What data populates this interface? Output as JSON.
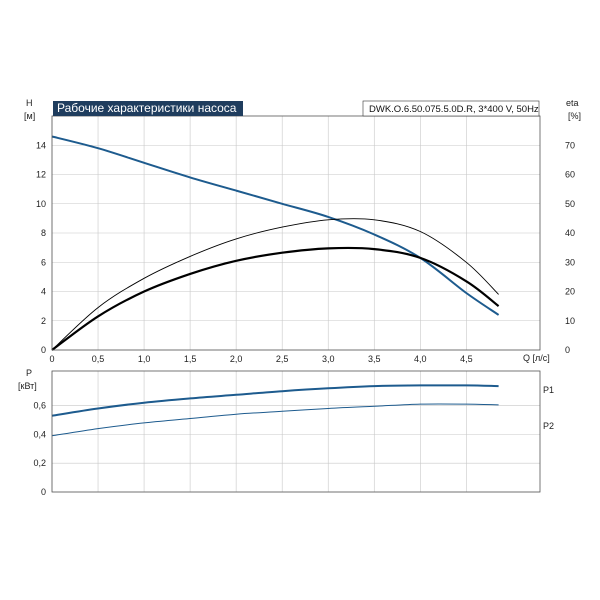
{
  "title": "Рабочие характеристики насоса",
  "model": "DWK.O.6.50.075.5.0D.R, 3*400 V, 50Hz",
  "colors": {
    "head": "#1d5b8e",
    "power": "#1d5b8e",
    "eta": "#000000",
    "title_bg": "#1f3d5e"
  },
  "chart_data": [
    {
      "type": "line",
      "xlabel": "Q [л/с]",
      "ylabel_left": [
        "H",
        "[м]"
      ],
      "ylabel_right": [
        "eta",
        "[%]"
      ],
      "xlim": [
        0,
        5.3
      ],
      "ylim": [
        0,
        16
      ],
      "ylim_right": [
        0,
        80
      ],
      "xticks": [
        0,
        0.5,
        1.0,
        1.5,
        2.0,
        2.5,
        3.0,
        3.5,
        4.0,
        4.5
      ],
      "xtick_labels": [
        "0",
        "0,5",
        "1,0",
        "1,5",
        "2,0",
        "2,5",
        "3,0",
        "3,5",
        "4,0",
        "4,5"
      ],
      "yticks": [
        0,
        2,
        4,
        6,
        8,
        10,
        12,
        14
      ],
      "yticks_right": [
        0,
        10,
        20,
        30,
        40,
        50,
        60,
        70
      ],
      "grid": true,
      "series": [
        {
          "axis": "left",
          "color": "#1d5b8e",
          "width": 2,
          "x": [
            0,
            0.5,
            1.0,
            1.5,
            2.0,
            2.5,
            3.0,
            3.5,
            4.0,
            4.5,
            4.85
          ],
          "values": [
            14.6,
            13.8,
            12.8,
            11.8,
            10.9,
            10.0,
            9.1,
            7.9,
            6.3,
            3.9,
            2.4
          ]
        },
        {
          "axis": "left",
          "color": "#000000",
          "width": 2.2,
          "x": [
            0,
            0.5,
            1.0,
            1.5,
            2.0,
            2.5,
            3.0,
            3.5,
            4.0,
            4.5,
            4.85
          ],
          "values": [
            0,
            2.3,
            4.0,
            5.2,
            6.1,
            6.65,
            6.95,
            6.9,
            6.3,
            4.7,
            3.0
          ]
        },
        {
          "axis": "right",
          "color": "#000000",
          "width": 0.9,
          "x": [
            0,
            0.5,
            1.0,
            1.5,
            2.0,
            2.5,
            3.0,
            3.5,
            4.0,
            4.5,
            4.85
          ],
          "values": [
            0,
            14.5,
            24.5,
            32,
            38,
            42,
            44.5,
            44.5,
            40.5,
            30,
            19
          ]
        }
      ]
    },
    {
      "type": "line",
      "ylabel": [
        "P",
        "[кВт]"
      ],
      "xlim": [
        0,
        5.3
      ],
      "ylim": [
        0,
        0.84
      ],
      "yticks": [
        0,
        0.2,
        0.4,
        0.6
      ],
      "ytick_labels": [
        "0",
        "0,2",
        "0,4",
        "0,6"
      ],
      "grid": true,
      "series": [
        {
          "name": "P1",
          "color": "#1d5b8e",
          "width": 2,
          "x": [
            0,
            0.5,
            1.0,
            1.5,
            2.0,
            2.5,
            3.0,
            3.5,
            4.0,
            4.5,
            4.85
          ],
          "values": [
            0.53,
            0.58,
            0.62,
            0.65,
            0.675,
            0.7,
            0.72,
            0.735,
            0.74,
            0.74,
            0.735
          ]
        },
        {
          "name": "P2",
          "color": "#1d5b8e",
          "width": 1,
          "x": [
            0,
            0.5,
            1.0,
            1.5,
            2.0,
            2.5,
            3.0,
            3.5,
            4.0,
            4.5,
            4.85
          ],
          "values": [
            0.39,
            0.44,
            0.48,
            0.51,
            0.54,
            0.56,
            0.58,
            0.595,
            0.61,
            0.61,
            0.605
          ]
        }
      ]
    }
  ]
}
